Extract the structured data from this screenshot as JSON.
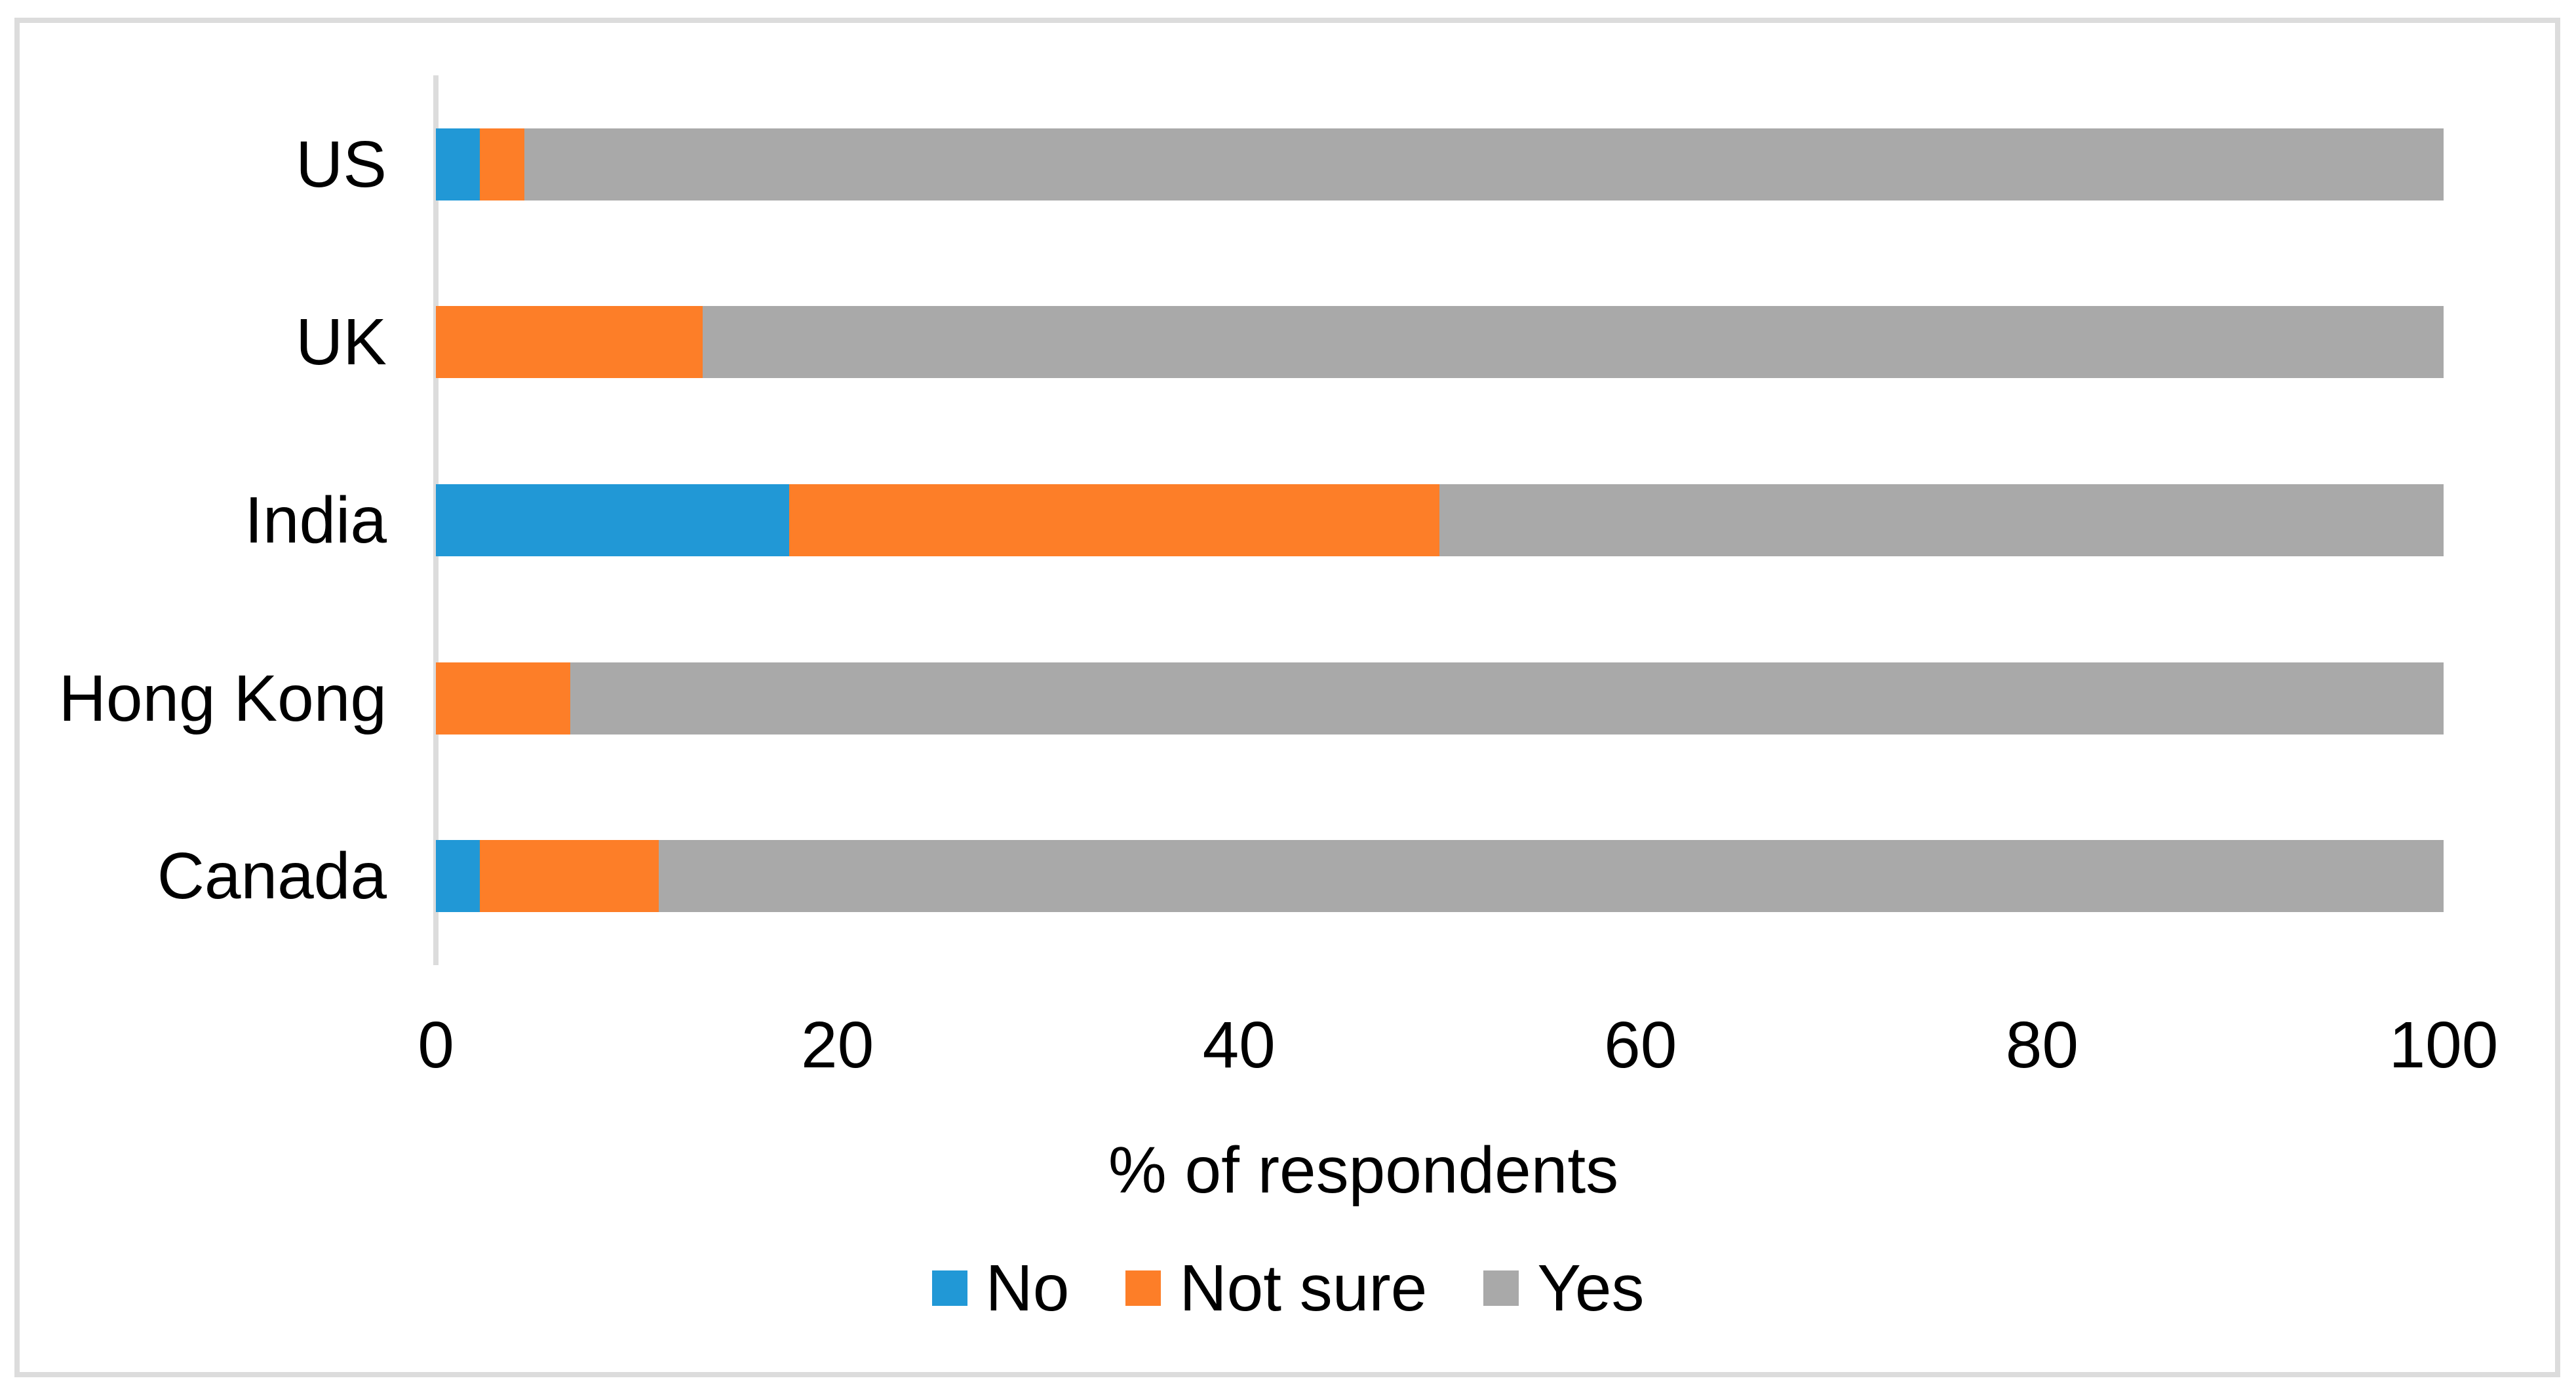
{
  "chart_data": {
    "type": "bar",
    "orientation": "horizontal",
    "stacked": true,
    "stacked_total": 100,
    "title": "",
    "xlabel": "% of respondents",
    "ylabel": "",
    "xlim": [
      0,
      100
    ],
    "x_ticks": [
      0,
      20,
      40,
      60,
      80,
      100
    ],
    "grid": false,
    "legend_position": "bottom",
    "categories": [
      "US",
      "UK",
      "India",
      "Hong Kong",
      "Canada"
    ],
    "series": [
      {
        "name": "No",
        "color": "#2198d6",
        "values": [
          2.2,
          0,
          17.6,
          0,
          2.2
        ]
      },
      {
        "name": "Not sure",
        "color": "#fd7e28",
        "values": [
          2.2,
          13.3,
          32.4,
          6.7,
          8.9
        ]
      },
      {
        "name": "Yes",
        "color": "#a9a9a9",
        "values": [
          95.6,
          86.7,
          50.0,
          93.3,
          88.9
        ]
      }
    ]
  },
  "colors": {
    "axis_line": "#dcdcdc",
    "frame_border": "#dcdcdc",
    "text": "#000000",
    "background": "#ffffff"
  }
}
